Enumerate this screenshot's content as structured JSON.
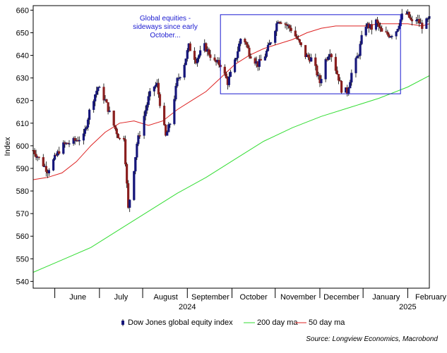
{
  "chart_data": {
    "type": "candlestick",
    "ylabel": "Index",
    "ylim": [
      537,
      662
    ],
    "y_ticks": [
      "540",
      "550",
      "560",
      "570",
      "580",
      "590",
      "600",
      "610",
      "620",
      "630",
      "640",
      "650",
      "660"
    ],
    "x_range_days": [
      0,
      275
    ],
    "x_ticks": [
      {
        "label": "June",
        "day": 31
      },
      {
        "label": "July",
        "day": 61
      },
      {
        "label": "August",
        "day": 92
      },
      {
        "label": "September",
        "day": 123
      },
      {
        "label": "October",
        "day": 153
      },
      {
        "label": "November",
        "day": 184
      },
      {
        "label": "December",
        "day": 214
      },
      {
        "label": "January",
        "day": 245
      },
      {
        "label": "February",
        "day": 276
      }
    ],
    "month_boundaries": [
      15,
      46,
      76,
      107,
      138,
      168,
      199,
      229,
      260
    ],
    "year_labels": [
      {
        "label": "2024",
        "day": 107
      },
      {
        "label": "2025",
        "day": 260
      }
    ],
    "annotation": {
      "lines": [
        "Global equities -",
        "sideways since early",
        "October..."
      ],
      "box_x": [
        130,
        255
      ],
      "box_y": [
        623,
        658
      ],
      "color": "#1a1ad0"
    },
    "legend": {
      "items": [
        "Dow Jones global equity index",
        "200 day ma",
        "50 day ma"
      ],
      "placement": "bottom"
    },
    "source": "Source: Longview Economics, Macrobond",
    "colors": {
      "up": "#16167a",
      "down": "#8a1f1f",
      "ma200": "#33dd33",
      "ma50": "#dd2222",
      "frame": "#000000"
    },
    "series": [
      {
        "name": "Dow Jones global equity index",
        "x": [
          0,
          10,
          20,
          24,
          28,
          35,
          40,
          45,
          50,
          56,
          60,
          63,
          66,
          70,
          72,
          75,
          80,
          83,
          86,
          88,
          92,
          95,
          100,
          104,
          108,
          113,
          119,
          126,
          130,
          135,
          140,
          145,
          150,
          156,
          161,
          166,
          170,
          175,
          180,
          185,
          189,
          194,
          199,
          203,
          206,
          212,
          214,
          218,
          221,
          226,
          230,
          235,
          238,
          242,
          248,
          252,
          257,
          260,
          264,
          266,
          270,
          275
        ],
        "y": [
          598,
          589,
          600,
          601,
          602,
          604,
          618,
          626,
          620,
          609,
          603,
          604,
          572,
          590,
          601,
          608,
          621,
          626,
          627,
          619,
          604,
          610,
          629,
          634,
          644,
          638,
          644,
          637,
          636,
          628,
          637,
          650,
          641,
          636,
          640,
          648,
          656,
          654,
          651,
          645,
          640,
          638,
          628,
          638,
          642,
          630,
          625,
          624,
          632,
          641,
          654,
          652,
          655,
          650,
          649,
          651,
          659,
          658,
          653,
          656,
          653,
          656
        ]
      },
      {
        "name": "200 day ma",
        "x": [
          0,
          20,
          40,
          60,
          80,
          100,
          120,
          140,
          160,
          180,
          200,
          220,
          240,
          260,
          275
        ],
        "y": [
          544,
          549.5,
          555,
          563,
          571,
          579,
          586,
          594,
          602,
          608,
          613,
          617,
          621,
          626,
          631
        ]
      },
      {
        "name": "50 day ma",
        "x": [
          0,
          10,
          20,
          30,
          40,
          50,
          60,
          70,
          80,
          90,
          100,
          110,
          120,
          130,
          140,
          150,
          160,
          170,
          180,
          190,
          200,
          210,
          220,
          230,
          240,
          250,
          260,
          270,
          275
        ],
        "y": [
          585,
          586,
          588,
          593,
          600,
          606,
          610,
          611,
          609,
          611,
          616,
          620,
          624,
          630,
          636,
          640,
          643,
          645,
          647,
          650,
          652,
          653,
          653,
          653,
          654,
          654,
          654,
          653,
          654
        ]
      }
    ]
  }
}
